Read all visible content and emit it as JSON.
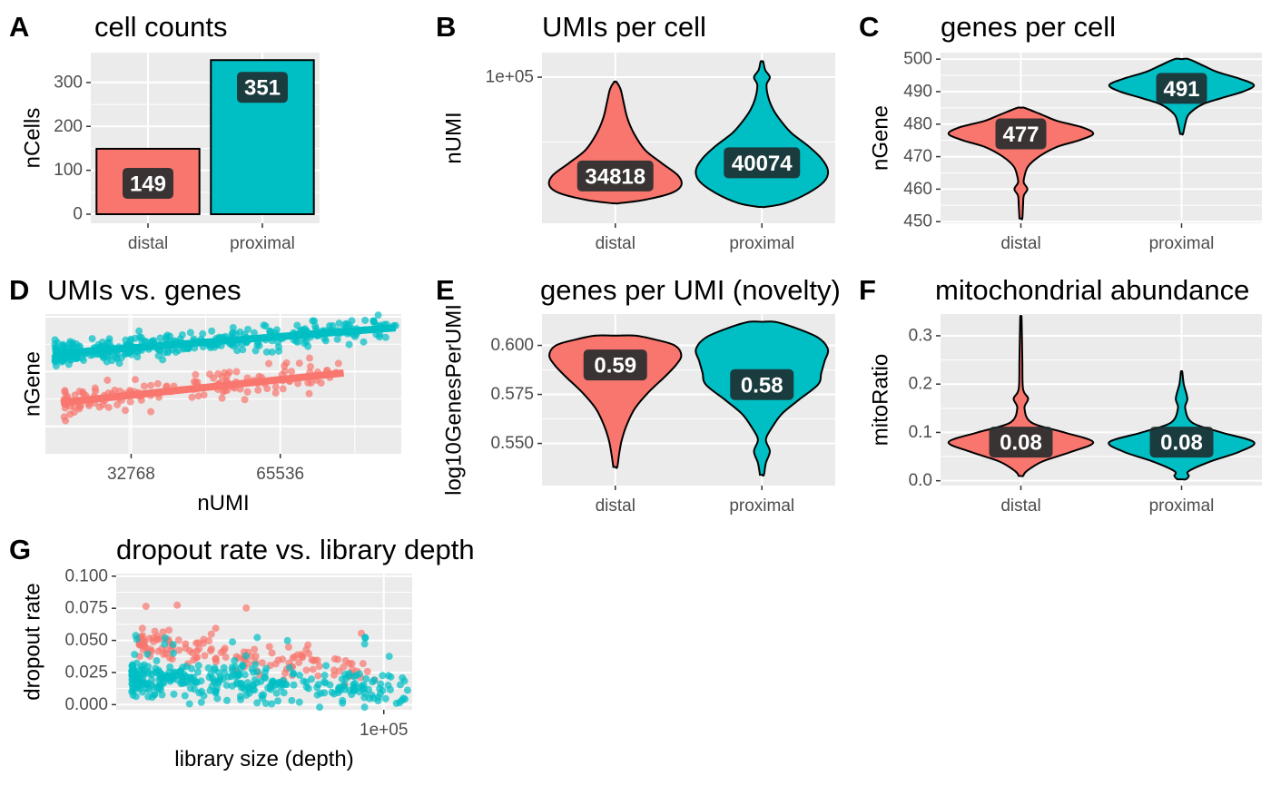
{
  "colors": {
    "distal": "#F8766D",
    "proximal": "#00BFC4",
    "panel_bg": "#EBEBEB",
    "grid": "#FFFFFF",
    "label_bg": "#1f2a2b"
  },
  "chart_data": [
    {
      "panel": "A",
      "type": "bar",
      "title": "cell counts",
      "xlabel": "",
      "ylabel": "nCells",
      "categories": [
        "distal",
        "proximal"
      ],
      "values": [
        149,
        351
      ],
      "labels": [
        "149",
        "351"
      ],
      "ylim": [
        0,
        368
      ],
      "yticks": [
        0,
        100,
        200,
        300
      ]
    },
    {
      "panel": "B",
      "type": "violin",
      "title": "UMIs per cell",
      "xlabel": "",
      "ylabel": "nUMI",
      "yscale": "log10",
      "categories": [
        "distal",
        "proximal"
      ],
      "medians": [
        34818,
        40074
      ],
      "labels": [
        "34818",
        "40074"
      ],
      "ylim": [
        21000,
        130000
      ],
      "yticks": [
        100000
      ],
      "yticklabels": [
        "1e+05"
      ],
      "shapes": [
        {
          "ymin": 26000,
          "ymax": 95000,
          "width": [
            [
              26000,
              0.05
            ],
            [
              27000,
              0.45
            ],
            [
              29000,
              0.85
            ],
            [
              31500,
              1.0
            ],
            [
              35000,
              0.95
            ],
            [
              40000,
              0.7
            ],
            [
              46000,
              0.45
            ],
            [
              55000,
              0.28
            ],
            [
              65000,
              0.18
            ],
            [
              78000,
              0.12
            ],
            [
              88000,
              0.08
            ],
            [
              95000,
              0.02
            ]
          ]
        },
        {
          "ymin": 25000,
          "ymax": 118000,
          "width": [
            [
              25000,
              0.05
            ],
            [
              26000,
              0.35
            ],
            [
              29000,
              0.7
            ],
            [
              33000,
              0.95
            ],
            [
              37000,
              1.0
            ],
            [
              42000,
              0.9
            ],
            [
              48000,
              0.7
            ],
            [
              55000,
              0.45
            ],
            [
              62000,
              0.3
            ],
            [
              70000,
              0.18
            ],
            [
              80000,
              0.1
            ],
            [
              92000,
              0.07
            ],
            [
              100000,
              0.12
            ],
            [
              108000,
              0.05
            ],
            [
              118000,
              0.02
            ]
          ]
        }
      ]
    },
    {
      "panel": "C",
      "type": "violin",
      "title": "genes per cell",
      "xlabel": "",
      "ylabel": "nGene",
      "categories": [
        "distal",
        "proximal"
      ],
      "medians": [
        477,
        491
      ],
      "labels": [
        "477",
        "491"
      ],
      "ylim": [
        449.5,
        502
      ],
      "yticks": [
        450,
        460,
        470,
        480,
        490,
        500
      ],
      "shapes": [
        {
          "ymin": 451,
          "ymax": 485,
          "width": [
            [
              451,
              0.02
            ],
            [
              455,
              0.03
            ],
            [
              458,
              0.04
            ],
            [
              460,
              0.09
            ],
            [
              462,
              0.04
            ],
            [
              464,
              0.05
            ],
            [
              467,
              0.1
            ],
            [
              470,
              0.25
            ],
            [
              473,
              0.5
            ],
            [
              475,
              0.8
            ],
            [
              477,
              1.0
            ],
            [
              479,
              0.85
            ],
            [
              481,
              0.5
            ],
            [
              483,
              0.28
            ],
            [
              485,
              0.05
            ]
          ]
        },
        {
          "ymin": 477,
          "ymax": 500,
          "width": [
            [
              477,
              0.02
            ],
            [
              480,
              0.05
            ],
            [
              483,
              0.1
            ],
            [
              486,
              0.28
            ],
            [
              488,
              0.55
            ],
            [
              490,
              0.85
            ],
            [
              492,
              1.0
            ],
            [
              494,
              0.8
            ],
            [
              496,
              0.5
            ],
            [
              498,
              0.3
            ],
            [
              500,
              0.1
            ]
          ]
        }
      ]
    },
    {
      "panel": "D",
      "type": "scatter",
      "title": "UMIs vs. genes",
      "xlabel": "nUMI",
      "ylabel": "nGene",
      "xscale": "log2",
      "xticks": [
        32768,
        65536
      ],
      "xticklabels": [
        "32768",
        "65536"
      ],
      "xlim": [
        22000,
        115000
      ],
      "ylim": [
        450,
        501
      ],
      "series": [
        {
          "name": "distal",
          "n": 149,
          "xrange": [
            24000,
            88000
          ],
          "fit": [
            [
              24500,
              469
            ],
            [
              88000,
              479.5
            ]
          ],
          "ymean": 471,
          "spread": 3.5
        },
        {
          "name": "proximal",
          "n": 351,
          "xrange": [
            23000,
            112000
          ],
          "fit": [
            [
              23000,
              486.5
            ],
            [
              112000,
              496
            ]
          ],
          "ymean": 488,
          "spread": 3
        }
      ]
    },
    {
      "panel": "E",
      "type": "violin",
      "title": "genes per UMI (novelty)",
      "xlabel": "",
      "ylabel": "log10GenesPerUMI",
      "categories": [
        "distal",
        "proximal"
      ],
      "medians": [
        0.59,
        0.58
      ],
      "labels": [
        "0.59",
        "0.58"
      ],
      "ylim": [
        0.5285,
        0.616
      ],
      "yticks": [
        0.55,
        0.575,
        0.6
      ],
      "yticklabels": [
        "0.550",
        "0.575",
        "0.600"
      ],
      "shapes": [
        {
          "ymin": 0.538,
          "ymax": 0.605,
          "width": [
            [
              0.538,
              0.03
            ],
            [
              0.545,
              0.06
            ],
            [
              0.552,
              0.1
            ],
            [
              0.56,
              0.18
            ],
            [
              0.568,
              0.3
            ],
            [
              0.576,
              0.5
            ],
            [
              0.584,
              0.75
            ],
            [
              0.59,
              0.92
            ],
            [
              0.595,
              1.0
            ],
            [
              0.6,
              0.9
            ],
            [
              0.603,
              0.6
            ],
            [
              0.605,
              0.3
            ]
          ]
        },
        {
          "ymin": 0.534,
          "ymax": 0.612,
          "width": [
            [
              0.534,
              0.03
            ],
            [
              0.54,
              0.06
            ],
            [
              0.546,
              0.12
            ],
            [
              0.552,
              0.06
            ],
            [
              0.558,
              0.15
            ],
            [
              0.565,
              0.3
            ],
            [
              0.572,
              0.55
            ],
            [
              0.58,
              0.85
            ],
            [
              0.586,
              0.9
            ],
            [
              0.592,
              0.95
            ],
            [
              0.598,
              1.0
            ],
            [
              0.604,
              0.85
            ],
            [
              0.609,
              0.5
            ],
            [
              0.612,
              0.2
            ]
          ]
        }
      ]
    },
    {
      "panel": "F",
      "type": "violin",
      "title": "mitochondrial abundance",
      "xlabel": "",
      "ylabel": "mitoRatio",
      "categories": [
        "distal",
        "proximal"
      ],
      "medians": [
        0.08,
        0.08
      ],
      "labels": [
        "0.08",
        "0.08"
      ],
      "ylim": [
        -0.01,
        0.345
      ],
      "yticks": [
        0,
        0.1,
        0.2,
        0.3
      ],
      "yticklabels": [
        "0.0",
        "0.1",
        "0.2",
        "0.3"
      ],
      "shapes": [
        {
          "ymin": 0.01,
          "ymax": 0.335,
          "width": [
            [
              0.01,
              0.03
            ],
            [
              0.02,
              0.08
            ],
            [
              0.04,
              0.3
            ],
            [
              0.06,
              0.7
            ],
            [
              0.08,
              1.0
            ],
            [
              0.1,
              0.6
            ],
            [
              0.12,
              0.15
            ],
            [
              0.15,
              0.05
            ],
            [
              0.17,
              0.1
            ],
            [
              0.19,
              0.03
            ],
            [
              0.25,
              0.02
            ],
            [
              0.335,
              0.01
            ]
          ]
        },
        {
          "ymin": 0.003,
          "ymax": 0.225,
          "width": [
            [
              0.003,
              0.06
            ],
            [
              0.01,
              0.1
            ],
            [
              0.02,
              0.1
            ],
            [
              0.04,
              0.4
            ],
            [
              0.06,
              0.8
            ],
            [
              0.08,
              1.0
            ],
            [
              0.1,
              0.55
            ],
            [
              0.12,
              0.15
            ],
            [
              0.15,
              0.05
            ],
            [
              0.17,
              0.08
            ],
            [
              0.2,
              0.03
            ],
            [
              0.225,
              0.01
            ]
          ]
        }
      ]
    },
    {
      "panel": "G",
      "type": "scatter",
      "title": "dropout rate vs. library depth",
      "xlabel": "library size (depth)",
      "ylabel": "dropout rate",
      "xscale": "log10",
      "xticks": [
        100000
      ],
      "xticklabels": [
        "1e+05"
      ],
      "xlim": [
        21000,
        118000
      ],
      "ylim": [
        -0.004,
        0.102
      ],
      "yticks": [
        0,
        0.025,
        0.05,
        0.075,
        0.1
      ],
      "yticklabels": [
        "0.000",
        "0.025",
        "0.050",
        "0.075",
        "0.100"
      ],
      "series": [
        {
          "name": "distal",
          "n": 149,
          "xrange": [
            24000,
            95000
          ],
          "ymean": 0.048,
          "spread": 0.008
        },
        {
          "name": "proximal",
          "n": 351,
          "xrange": [
            23000,
            115000
          ],
          "ymean": 0.02,
          "spread": 0.01
        }
      ]
    }
  ]
}
